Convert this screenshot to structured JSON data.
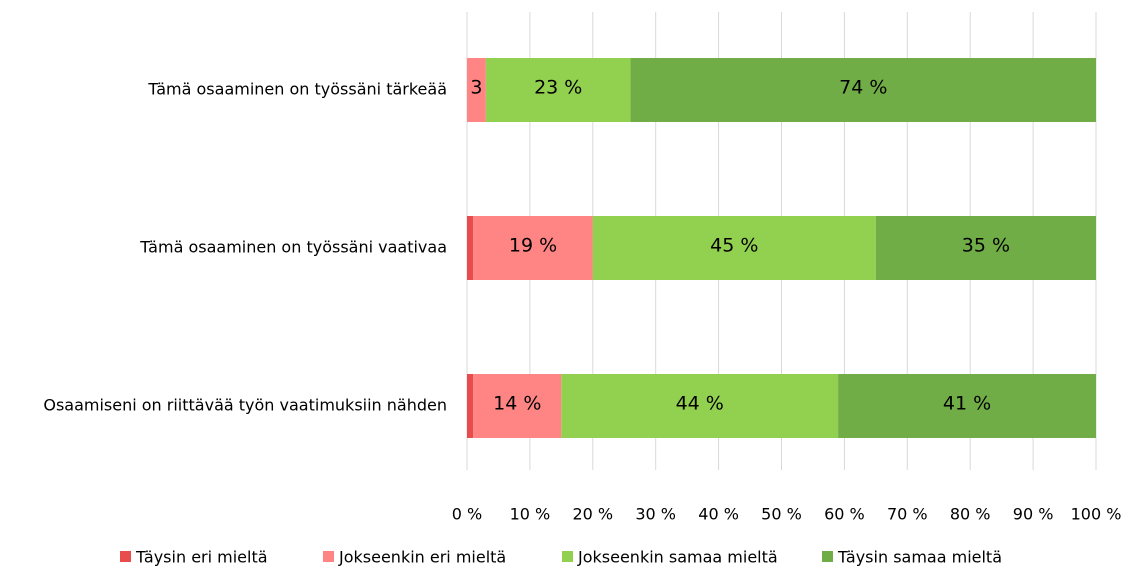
{
  "chart_data": {
    "type": "stacked-barh",
    "categories": [
      "Tämä osaaminen on työssäni tärkeää",
      "Tämä osaaminen on työssäni vaativaa",
      "Osaamiseni on riittävää työn vaatimuksiin nähden"
    ],
    "series": [
      {
        "name": "Täysin eri mieltä",
        "color": "#e84c4c",
        "values": [
          0,
          1,
          1
        ],
        "value_labels": [
          null,
          null,
          null
        ]
      },
      {
        "name": "Jokseenkin eri mieltä",
        "color": "#ff8585",
        "values": [
          3,
          19,
          14
        ],
        "value_labels": [
          "3 %",
          "19 %",
          "14 %"
        ]
      },
      {
        "name": "Jokseenkin samaa mieltä",
        "color": "#92d050",
        "values": [
          23,
          45,
          44
        ],
        "value_labels": [
          "23 %",
          "45 %",
          "44 %"
        ]
      },
      {
        "name": "Täysin samaa mieltä",
        "color": "#70ad47",
        "values": [
          74,
          35,
          41
        ],
        "value_labels": [
          "74 %",
          "35 %",
          "41 %"
        ]
      }
    ],
    "xlim": [
      0,
      100
    ],
    "xticks": [
      {
        "value": 0,
        "label": "0 %"
      },
      {
        "value": 10,
        "label": "10 %"
      },
      {
        "value": 20,
        "label": "20 %"
      },
      {
        "value": 30,
        "label": "30 %"
      },
      {
        "value": 40,
        "label": "40 %"
      },
      {
        "value": 50,
        "label": "50 %"
      },
      {
        "value": 60,
        "label": "60 %"
      },
      {
        "value": 70,
        "label": "70 %"
      },
      {
        "value": 80,
        "label": "80 %"
      },
      {
        "value": 90,
        "label": "90 %"
      },
      {
        "value": 100,
        "label": "100 %"
      }
    ],
    "grid": true,
    "legend": "bottom"
  }
}
